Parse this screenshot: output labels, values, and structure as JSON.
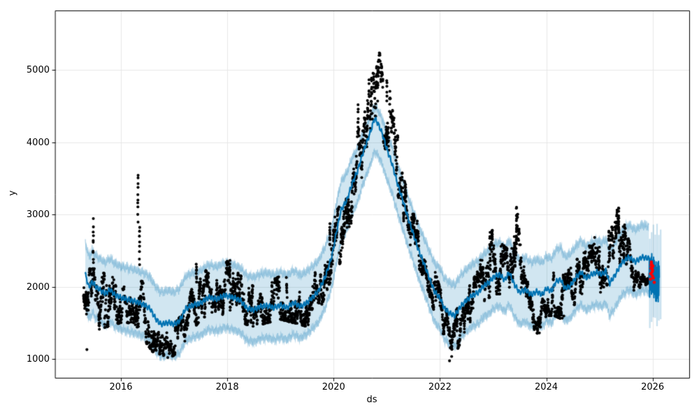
{
  "chart_data": {
    "type": "scatter",
    "title": "",
    "xlabel": "ds",
    "ylabel": "y",
    "x_ticks": [
      2016,
      2018,
      2020,
      2022,
      2024,
      2026
    ],
    "x_tick_labels": [
      "2016",
      "2018",
      "2020",
      "2022",
      "2024",
      "2026"
    ],
    "y_ticks": [
      1000,
      2000,
      3000,
      4000,
      5000
    ],
    "y_tick_labels": [
      "1000",
      "2000",
      "3000",
      "4000",
      "5000"
    ],
    "x_domain": [
      2014.764,
      2026.688
    ],
    "y_domain": [
      735,
      5822
    ],
    "grid": true,
    "legend": false,
    "colors": {
      "forecast_line": "#0072b2",
      "uncertainty_fill": "rgba(0,114,178,0.18)",
      "uncertainty_edge": "rgba(0,114,178,0.35)",
      "observations": "#000000",
      "anomalies": "#ff0000",
      "gridline": "#e7e7e7",
      "spine": "#000000"
    },
    "series": {
      "forecast_line": {
        "name": "yhat",
        "points": [
          [
            2015.33,
            2170
          ],
          [
            2015.4,
            1990
          ],
          [
            2015.46,
            2070
          ],
          [
            2015.53,
            2000
          ],
          [
            2015.62,
            1950
          ],
          [
            2015.7,
            1905
          ],
          [
            2015.8,
            1960
          ],
          [
            2015.88,
            1890
          ],
          [
            2016.0,
            1850
          ],
          [
            2016.15,
            1820
          ],
          [
            2016.3,
            1790
          ],
          [
            2016.45,
            1745
          ],
          [
            2016.55,
            1695
          ],
          [
            2016.65,
            1560
          ],
          [
            2016.75,
            1480
          ],
          [
            2016.9,
            1505
          ],
          [
            2017.0,
            1480
          ],
          [
            2017.1,
            1525
          ],
          [
            2017.22,
            1700
          ],
          [
            2017.35,
            1745
          ],
          [
            2017.5,
            1775
          ],
          [
            2017.65,
            1855
          ],
          [
            2017.8,
            1830
          ],
          [
            2017.95,
            1880
          ],
          [
            2018.1,
            1855
          ],
          [
            2018.25,
            1810
          ],
          [
            2018.37,
            1700
          ],
          [
            2018.5,
            1680
          ],
          [
            2018.62,
            1725
          ],
          [
            2018.75,
            1740
          ],
          [
            2018.88,
            1710
          ],
          [
            2019.0,
            1745
          ],
          [
            2019.12,
            1710
          ],
          [
            2019.25,
            1780
          ],
          [
            2019.38,
            1725
          ],
          [
            2019.5,
            1780
          ],
          [
            2019.6,
            1850
          ],
          [
            2019.72,
            1945
          ],
          [
            2019.85,
            2150
          ],
          [
            2019.97,
            2430
          ],
          [
            2020.06,
            2780
          ],
          [
            2020.14,
            3060
          ],
          [
            2020.25,
            3200
          ],
          [
            2020.35,
            3430
          ],
          [
            2020.45,
            3600
          ],
          [
            2020.55,
            3850
          ],
          [
            2020.63,
            4010
          ],
          [
            2020.7,
            4160
          ],
          [
            2020.77,
            4330
          ],
          [
            2020.84,
            4250
          ],
          [
            2020.92,
            4110
          ],
          [
            2020.98,
            3950
          ],
          [
            2021.1,
            3700
          ],
          [
            2021.2,
            3430
          ],
          [
            2021.3,
            3200
          ],
          [
            2021.4,
            2950
          ],
          [
            2021.5,
            2730
          ],
          [
            2021.6,
            2500
          ],
          [
            2021.7,
            2320
          ],
          [
            2021.8,
            2120
          ],
          [
            2021.9,
            1930
          ],
          [
            2022.0,
            1845
          ],
          [
            2022.08,
            1705
          ],
          [
            2022.18,
            1635
          ],
          [
            2022.28,
            1600
          ],
          [
            2022.38,
            1720
          ],
          [
            2022.48,
            1800
          ],
          [
            2022.6,
            1875
          ],
          [
            2022.72,
            1920
          ],
          [
            2022.82,
            2010
          ],
          [
            2022.92,
            2060
          ],
          [
            2023.02,
            2140
          ],
          [
            2023.12,
            2170
          ],
          [
            2023.22,
            2090
          ],
          [
            2023.3,
            2200
          ],
          [
            2023.4,
            2030
          ],
          [
            2023.5,
            1920
          ],
          [
            2023.6,
            1960
          ],
          [
            2023.72,
            1890
          ],
          [
            2023.82,
            1935
          ],
          [
            2023.92,
            1890
          ],
          [
            2024.0,
            1975
          ],
          [
            2024.1,
            1940
          ],
          [
            2024.18,
            2070
          ],
          [
            2024.27,
            2100
          ],
          [
            2024.35,
            1975
          ],
          [
            2024.45,
            2010
          ],
          [
            2024.55,
            2120
          ],
          [
            2024.65,
            2200
          ],
          [
            2024.75,
            2120
          ],
          [
            2024.85,
            2170
          ],
          [
            2024.95,
            2200
          ],
          [
            2025.05,
            2170
          ],
          [
            2025.12,
            2225
          ],
          [
            2025.19,
            2045
          ],
          [
            2025.3,
            2170
          ],
          [
            2025.42,
            2330
          ],
          [
            2025.55,
            2410
          ],
          [
            2025.68,
            2345
          ],
          [
            2025.8,
            2410
          ],
          [
            2025.93,
            2390
          ]
        ]
      },
      "uncertainty_band": {
        "offsets": [
          [
            2015.33,
            430,
            440
          ],
          [
            2017.0,
            450,
            450
          ],
          [
            2019.0,
            460,
            450
          ],
          [
            2019.9,
            420,
            430
          ],
          [
            2020.3,
            380,
            420
          ],
          [
            2020.77,
            180,
            460
          ],
          [
            2021.0,
            220,
            420
          ],
          [
            2021.5,
            320,
            390
          ],
          [
            2022.0,
            420,
            430
          ],
          [
            2023.0,
            450,
            440
          ],
          [
            2024.0,
            450,
            450
          ],
          [
            2025.0,
            440,
            450
          ],
          [
            2025.93,
            450,
            460
          ]
        ]
      },
      "observations": {
        "name": "y",
        "envelope": [
          [
            2015.3,
            1600,
            2250
          ],
          [
            2015.55,
            1400,
            2250
          ],
          [
            2015.75,
            1450,
            2150
          ],
          [
            2016.0,
            1500,
            2200
          ],
          [
            2016.25,
            1500,
            2150
          ],
          [
            2016.45,
            1250,
            2100
          ],
          [
            2016.6,
            1100,
            1700
          ],
          [
            2016.9,
            1020,
            1450
          ],
          [
            2017.15,
            1100,
            1600
          ],
          [
            2017.35,
            1400,
            2000
          ],
          [
            2017.5,
            1550,
            2300
          ],
          [
            2017.75,
            1600,
            2100
          ],
          [
            2018.0,
            1600,
            2350
          ],
          [
            2018.25,
            1500,
            2150
          ],
          [
            2018.5,
            1450,
            2000
          ],
          [
            2018.75,
            1500,
            2050
          ],
          [
            2019.0,
            1550,
            2150
          ],
          [
            2019.25,
            1500,
            2100
          ],
          [
            2019.5,
            1450,
            2050
          ],
          [
            2019.75,
            1700,
            2300
          ],
          [
            2019.95,
            2100,
            2900
          ],
          [
            2020.1,
            2300,
            3100
          ],
          [
            2020.25,
            2500,
            3300
          ],
          [
            2020.4,
            3000,
            4000
          ],
          [
            2020.55,
            3600,
            4700
          ],
          [
            2020.7,
            4200,
            5300
          ],
          [
            2020.8,
            4300,
            5600
          ],
          [
            2020.9,
            4100,
            5050
          ],
          [
            2021.05,
            3700,
            4800
          ],
          [
            2021.2,
            3300,
            4100
          ],
          [
            2021.35,
            2800,
            3600
          ],
          [
            2021.5,
            2400,
            3100
          ],
          [
            2021.65,
            2200,
            2800
          ],
          [
            2021.8,
            1900,
            2500
          ],
          [
            2021.95,
            1500,
            2100
          ],
          [
            2022.1,
            1150,
            1750
          ],
          [
            2022.25,
            1000,
            1600
          ],
          [
            2022.4,
            1250,
            1800
          ],
          [
            2022.55,
            1500,
            2000
          ],
          [
            2022.7,
            1600,
            2200
          ],
          [
            2022.85,
            1800,
            2600
          ],
          [
            2023.0,
            1900,
            2800
          ],
          [
            2023.15,
            1900,
            2600
          ],
          [
            2023.3,
            1800,
            2500
          ],
          [
            2023.45,
            2000,
            3100
          ],
          [
            2023.55,
            1700,
            2400
          ],
          [
            2023.7,
            1400,
            1900
          ],
          [
            2023.85,
            1350,
            1800
          ],
          [
            2024.0,
            1600,
            2100
          ],
          [
            2024.15,
            1600,
            2200
          ],
          [
            2024.3,
            1550,
            2150
          ],
          [
            2024.45,
            1700,
            2250
          ],
          [
            2024.6,
            1800,
            2400
          ],
          [
            2024.75,
            1900,
            2500
          ],
          [
            2024.9,
            2000,
            2700
          ],
          [
            2025.05,
            1900,
            2600
          ],
          [
            2025.2,
            2100,
            2800
          ],
          [
            2025.35,
            2300,
            3100
          ],
          [
            2025.5,
            2000,
            2800
          ],
          [
            2025.65,
            1950,
            2350
          ],
          [
            2025.8,
            2000,
            2250
          ],
          [
            2025.94,
            2050,
            2200
          ]
        ],
        "spikes": [
          [
            2015.48,
            2300,
            2950,
            10
          ],
          [
            2016.32,
            2900,
            3620,
            10
          ],
          [
            2016.35,
            2300,
            2850,
            8
          ],
          [
            2017.42,
            2050,
            2330,
            8
          ],
          [
            2018.05,
            2100,
            2380,
            7
          ],
          [
            2019.93,
            2550,
            2880,
            9
          ],
          [
            2020.46,
            4100,
            4560,
            7
          ],
          [
            2021.0,
            4550,
            4900,
            6
          ],
          [
            2022.94,
            2250,
            2810,
            10
          ],
          [
            2023.44,
            2550,
            3140,
            12
          ],
          [
            2025.36,
            2750,
            3130,
            10
          ]
        ],
        "outliers": [
          [
            2015.36,
            1130
          ],
          [
            2016.88,
            1020
          ],
          [
            2022.18,
            975
          ],
          [
            2022.22,
            1035
          ],
          [
            2023.87,
            1360
          ],
          [
            2024.3,
            1565
          ],
          [
            2024.33,
            1595
          ]
        ]
      },
      "future_forecast": {
        "start": 2025.935,
        "end": 2026.125,
        "center": 2115,
        "min": 1790,
        "max": 2440,
        "band_low": 1420,
        "band_high": 2880,
        "band_end": 2026.16
      },
      "anomalies": {
        "points": [
          [
            2025.96,
            2105
          ],
          [
            2025.965,
            2180
          ],
          [
            2025.97,
            2255
          ],
          [
            2025.972,
            2300
          ],
          [
            2025.976,
            2340
          ],
          [
            2025.982,
            2310
          ],
          [
            2025.986,
            2260
          ],
          [
            2025.99,
            2205
          ],
          [
            2025.995,
            2150
          ],
          [
            2026.0,
            2230
          ],
          [
            2026.005,
            2285
          ],
          [
            2026.012,
            2120
          ],
          [
            2026.03,
            2060
          ]
        ]
      }
    }
  }
}
